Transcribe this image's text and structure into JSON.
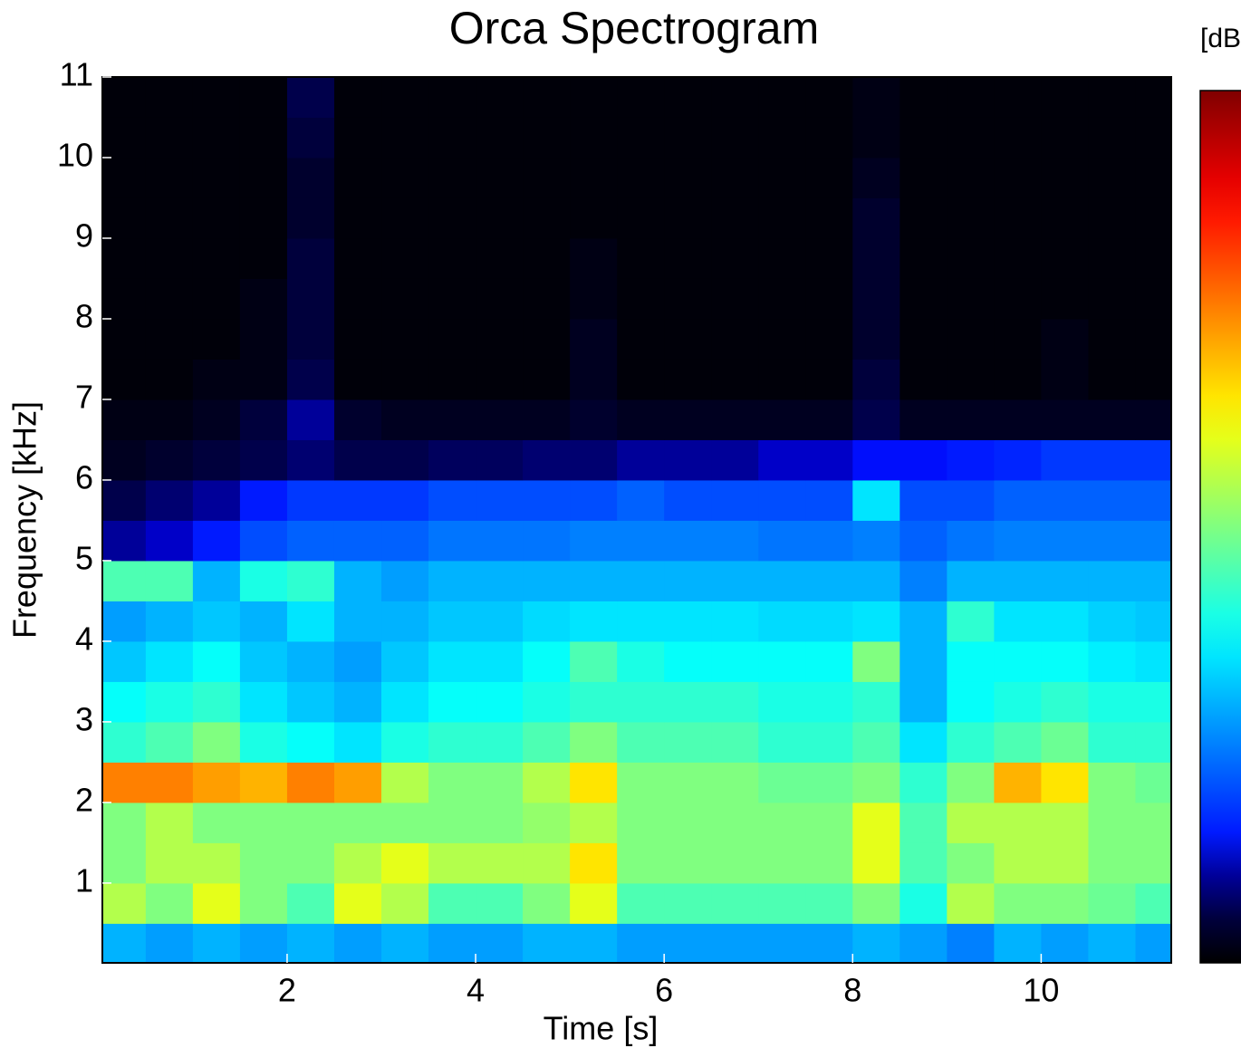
{
  "chart_data": {
    "type": "heatmap",
    "title": "Orca Spectrogram",
    "x_label": "Time [s]",
    "y_label": "Frequency [kHz]",
    "colorbar_label": "[dB",
    "colormap": "jet",
    "zlim": [
      0,
      1
    ],
    "xlim": [
      0.04,
      11.38
    ],
    "ylim": [
      0.01,
      11
    ],
    "xticks": [
      2,
      4,
      6,
      8,
      10
    ],
    "yticks": [
      1,
      2,
      3,
      4,
      5,
      6,
      7,
      8,
      9,
      10,
      11
    ],
    "x": [
      0.25,
      0.75,
      1.25,
      1.75,
      2.25,
      2.75,
      3.25,
      3.75,
      4.25,
      4.75,
      5.25,
      5.75,
      6.25,
      6.75,
      7.25,
      7.75,
      8.25,
      8.75,
      9.25,
      9.75,
      10.25,
      10.75,
      11.25
    ],
    "y": [
      0.25,
      0.75,
      1.25,
      1.75,
      2.25,
      2.75,
      3.25,
      3.75,
      4.25,
      4.75,
      5.25,
      5.75,
      6.25,
      6.75,
      7.25,
      7.75,
      8.25,
      8.75,
      9.25,
      9.75,
      10.25,
      10.75
    ],
    "z": [
      [
        0.3,
        0.28,
        0.3,
        0.28,
        0.3,
        0.28,
        0.3,
        0.28,
        0.28,
        0.3,
        0.3,
        0.28,
        0.28,
        0.28,
        0.28,
        0.28,
        0.3,
        0.28,
        0.25,
        0.3,
        0.28,
        0.3,
        0.28
      ],
      [
        0.55,
        0.5,
        0.6,
        0.5,
        0.45,
        0.6,
        0.55,
        0.45,
        0.45,
        0.5,
        0.6,
        0.45,
        0.45,
        0.45,
        0.45,
        0.45,
        0.5,
        0.4,
        0.55,
        0.5,
        0.5,
        0.48,
        0.45
      ],
      [
        0.5,
        0.55,
        0.55,
        0.5,
        0.5,
        0.55,
        0.6,
        0.55,
        0.55,
        0.55,
        0.65,
        0.5,
        0.5,
        0.5,
        0.5,
        0.5,
        0.6,
        0.45,
        0.5,
        0.55,
        0.55,
        0.5,
        0.5
      ],
      [
        0.5,
        0.55,
        0.5,
        0.5,
        0.5,
        0.5,
        0.5,
        0.5,
        0.5,
        0.52,
        0.55,
        0.5,
        0.5,
        0.5,
        0.5,
        0.5,
        0.6,
        0.45,
        0.55,
        0.55,
        0.55,
        0.5,
        0.5
      ],
      [
        0.75,
        0.75,
        0.72,
        0.7,
        0.75,
        0.72,
        0.55,
        0.5,
        0.5,
        0.55,
        0.65,
        0.5,
        0.5,
        0.5,
        0.48,
        0.48,
        0.5,
        0.42,
        0.5,
        0.7,
        0.65,
        0.5,
        0.48
      ],
      [
        0.42,
        0.45,
        0.5,
        0.4,
        0.38,
        0.35,
        0.4,
        0.42,
        0.42,
        0.45,
        0.5,
        0.45,
        0.45,
        0.45,
        0.42,
        0.42,
        0.45,
        0.35,
        0.42,
        0.45,
        0.48,
        0.42,
        0.42
      ],
      [
        0.38,
        0.4,
        0.42,
        0.35,
        0.32,
        0.3,
        0.35,
        0.38,
        0.38,
        0.4,
        0.42,
        0.42,
        0.42,
        0.42,
        0.4,
        0.4,
        0.42,
        0.3,
        0.38,
        0.4,
        0.42,
        0.4,
        0.4
      ],
      [
        0.32,
        0.35,
        0.38,
        0.32,
        0.3,
        0.28,
        0.32,
        0.35,
        0.35,
        0.38,
        0.45,
        0.4,
        0.38,
        0.38,
        0.38,
        0.38,
        0.5,
        0.3,
        0.38,
        0.38,
        0.38,
        0.36,
        0.35
      ],
      [
        0.28,
        0.3,
        0.32,
        0.3,
        0.35,
        0.3,
        0.3,
        0.32,
        0.32,
        0.34,
        0.35,
        0.35,
        0.35,
        0.35,
        0.34,
        0.34,
        0.35,
        0.3,
        0.42,
        0.35,
        0.35,
        0.33,
        0.32
      ],
      [
        0.45,
        0.45,
        0.3,
        0.4,
        0.42,
        0.3,
        0.28,
        0.3,
        0.3,
        0.3,
        0.3,
        0.3,
        0.3,
        0.3,
        0.3,
        0.3,
        0.3,
        0.25,
        0.3,
        0.3,
        0.3,
        0.3,
        0.3
      ],
      [
        0.1,
        0.12,
        0.15,
        0.2,
        0.22,
        0.22,
        0.22,
        0.24,
        0.24,
        0.24,
        0.25,
        0.25,
        0.25,
        0.25,
        0.24,
        0.24,
        0.25,
        0.22,
        0.24,
        0.25,
        0.25,
        0.25,
        0.25
      ],
      [
        0.06,
        0.08,
        0.1,
        0.15,
        0.18,
        0.18,
        0.18,
        0.2,
        0.2,
        0.2,
        0.2,
        0.22,
        0.2,
        0.2,
        0.2,
        0.2,
        0.35,
        0.2,
        0.2,
        0.22,
        0.22,
        0.22,
        0.22
      ],
      [
        0.03,
        0.04,
        0.05,
        0.06,
        0.08,
        0.06,
        0.06,
        0.07,
        0.07,
        0.08,
        0.08,
        0.1,
        0.1,
        0.1,
        0.12,
        0.12,
        0.14,
        0.14,
        0.15,
        0.16,
        0.18,
        0.18,
        0.18
      ],
      [
        0.02,
        0.02,
        0.03,
        0.05,
        0.1,
        0.04,
        0.03,
        0.03,
        0.03,
        0.03,
        0.04,
        0.03,
        0.03,
        0.03,
        0.03,
        0.03,
        0.06,
        0.03,
        0.03,
        0.03,
        0.03,
        0.03,
        0.03
      ],
      [
        0.01,
        0.01,
        0.02,
        0.02,
        0.06,
        0.01,
        0.01,
        0.01,
        0.01,
        0.01,
        0.03,
        0.01,
        0.01,
        0.01,
        0.01,
        0.01,
        0.05,
        0.01,
        0.01,
        0.01,
        0.02,
        0.01,
        0.01
      ],
      [
        0.01,
        0.01,
        0.01,
        0.02,
        0.05,
        0.01,
        0.01,
        0.01,
        0.01,
        0.01,
        0.03,
        0.01,
        0.01,
        0.01,
        0.01,
        0.01,
        0.04,
        0.01,
        0.01,
        0.01,
        0.02,
        0.01,
        0.01
      ],
      [
        0.01,
        0.01,
        0.01,
        0.02,
        0.05,
        0.01,
        0.01,
        0.01,
        0.01,
        0.01,
        0.02,
        0.01,
        0.01,
        0.01,
        0.01,
        0.01,
        0.04,
        0.01,
        0.01,
        0.01,
        0.01,
        0.01,
        0.01
      ],
      [
        0.01,
        0.01,
        0.01,
        0.01,
        0.05,
        0.01,
        0.01,
        0.01,
        0.01,
        0.01,
        0.02,
        0.01,
        0.01,
        0.01,
        0.01,
        0.01,
        0.04,
        0.01,
        0.01,
        0.01,
        0.01,
        0.01,
        0.01
      ],
      [
        0.01,
        0.01,
        0.01,
        0.01,
        0.04,
        0.01,
        0.01,
        0.01,
        0.01,
        0.01,
        0.01,
        0.01,
        0.01,
        0.01,
        0.01,
        0.01,
        0.04,
        0.01,
        0.01,
        0.01,
        0.01,
        0.01,
        0.01
      ],
      [
        0.01,
        0.01,
        0.01,
        0.01,
        0.04,
        0.01,
        0.01,
        0.01,
        0.01,
        0.01,
        0.01,
        0.01,
        0.01,
        0.01,
        0.01,
        0.01,
        0.03,
        0.01,
        0.01,
        0.01,
        0.01,
        0.01,
        0.01
      ],
      [
        0.01,
        0.01,
        0.01,
        0.01,
        0.05,
        0.01,
        0.01,
        0.01,
        0.01,
        0.01,
        0.01,
        0.01,
        0.01,
        0.01,
        0.01,
        0.01,
        0.02,
        0.01,
        0.01,
        0.01,
        0.01,
        0.01,
        0.01
      ],
      [
        0.01,
        0.01,
        0.01,
        0.01,
        0.06,
        0.01,
        0.01,
        0.01,
        0.01,
        0.01,
        0.01,
        0.01,
        0.01,
        0.01,
        0.01,
        0.01,
        0.02,
        0.01,
        0.01,
        0.01,
        0.01,
        0.01,
        0.01
      ]
    ]
  }
}
